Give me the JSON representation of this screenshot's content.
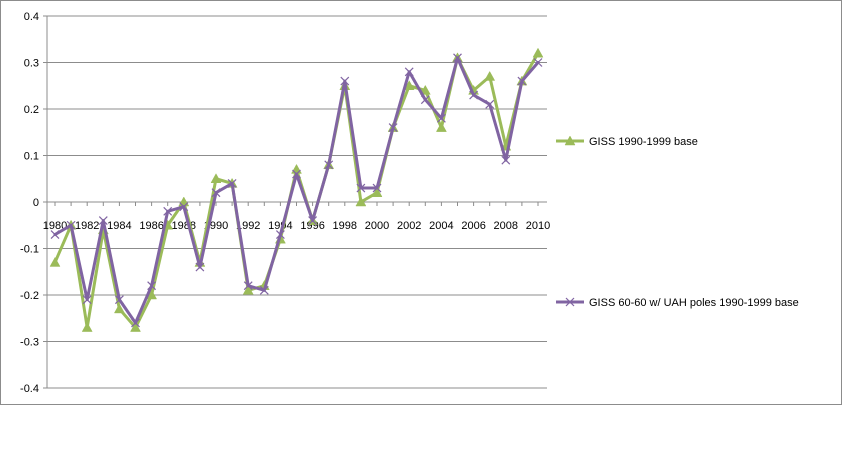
{
  "chart_data": {
    "type": "line",
    "title": "",
    "xlabel": "",
    "ylabel": "",
    "ylim": [
      -0.4,
      0.4
    ],
    "y_ticks": [
      "0.4",
      "0.3",
      "0.2",
      "0.1",
      "0",
      "-0.1",
      "-0.2",
      "-0.3",
      "-0.4"
    ],
    "x_tick_labels": [
      "1980",
      "1982",
      "1984",
      "1986",
      "1988",
      "1990",
      "1992",
      "1994",
      "1996",
      "1998",
      "2000",
      "2002",
      "2004",
      "2006",
      "2008",
      "2010"
    ],
    "grid": "horizontal",
    "legend_position": "right",
    "x": [
      1980,
      1981,
      1982,
      1983,
      1984,
      1985,
      1986,
      1987,
      1988,
      1989,
      1990,
      1991,
      1992,
      1993,
      1994,
      1995,
      1996,
      1997,
      1998,
      1999,
      2000,
      2001,
      2002,
      2003,
      2004,
      2005,
      2006,
      2007,
      2008,
      2009,
      2010
    ],
    "series": [
      {
        "name": "GISS 1990-1999 base",
        "color": "#9bbb59",
        "marker": "triangle",
        "values": [
          -0.13,
          -0.05,
          -0.27,
          -0.06,
          -0.23,
          -0.27,
          -0.2,
          -0.05,
          0.0,
          -0.13,
          0.05,
          0.04,
          -0.19,
          -0.18,
          -0.08,
          0.07,
          -0.04,
          0.08,
          0.25,
          0.0,
          0.02,
          0.16,
          0.25,
          0.24,
          0.16,
          0.31,
          0.24,
          0.27,
          0.12,
          0.26,
          0.32
        ]
      },
      {
        "name": "GISS 60-60 w/ UAH poles 1990-1999 base",
        "color": "#8064a2",
        "marker": "x",
        "values": [
          -0.07,
          -0.05,
          -0.21,
          -0.04,
          -0.21,
          -0.26,
          -0.18,
          -0.02,
          -0.01,
          -0.14,
          0.02,
          0.04,
          -0.18,
          -0.19,
          -0.07,
          0.06,
          -0.04,
          0.08,
          0.26,
          0.03,
          0.03,
          0.16,
          0.28,
          0.22,
          0.18,
          0.31,
          0.23,
          0.21,
          0.09,
          0.26,
          0.3
        ]
      }
    ]
  }
}
